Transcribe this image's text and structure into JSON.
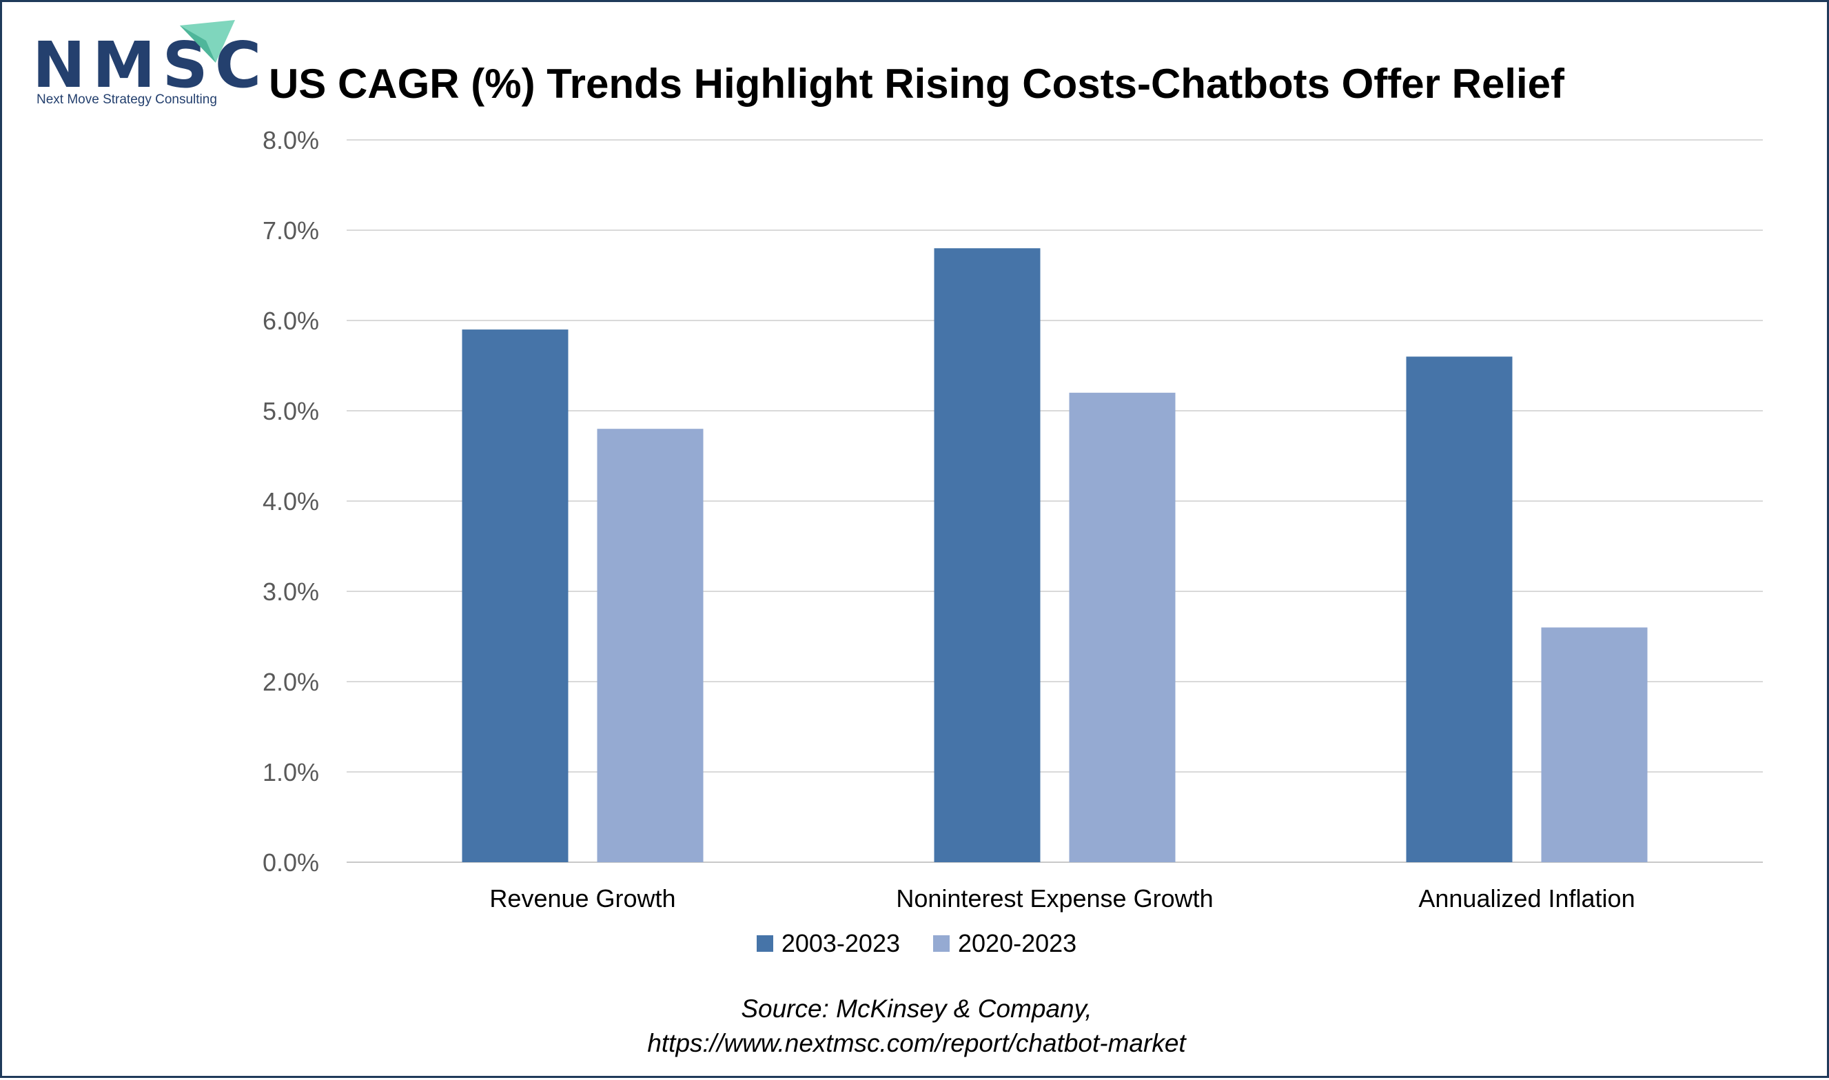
{
  "logo": {
    "text": "NMSC",
    "subtitle": "Next Move Strategy Consulting"
  },
  "chart_data": {
    "type": "bar",
    "title": "US CAGR (%) Trends Highlight Rising Costs-Chatbots Offer Relief",
    "categories": [
      "Revenue Growth",
      "Noninterest Expense Growth",
      "Annualized Inflation"
    ],
    "series": [
      {
        "name": "2003-2023",
        "values": [
          5.9,
          6.8,
          5.6
        ],
        "color": "#4674a8"
      },
      {
        "name": "2020-2023",
        "values": [
          4.8,
          5.2,
          2.6
        ],
        "color": "#95aad2"
      }
    ],
    "ylim": [
      0,
      8
    ],
    "y_ticks": [
      "0.0%",
      "1.0%",
      "2.0%",
      "3.0%",
      "4.0%",
      "5.0%",
      "6.0%",
      "7.0%",
      "8.0%"
    ],
    "grid": true,
    "legend_position": "bottom"
  },
  "source": {
    "line1": "Source: McKinsey & Company,",
    "line2": "https://www.nextmsc.com/report/chatbot-market"
  },
  "colors": {
    "frame": "#1f3a5a",
    "logo": "#24406e",
    "logo_arrow": "#7fd6bd"
  }
}
